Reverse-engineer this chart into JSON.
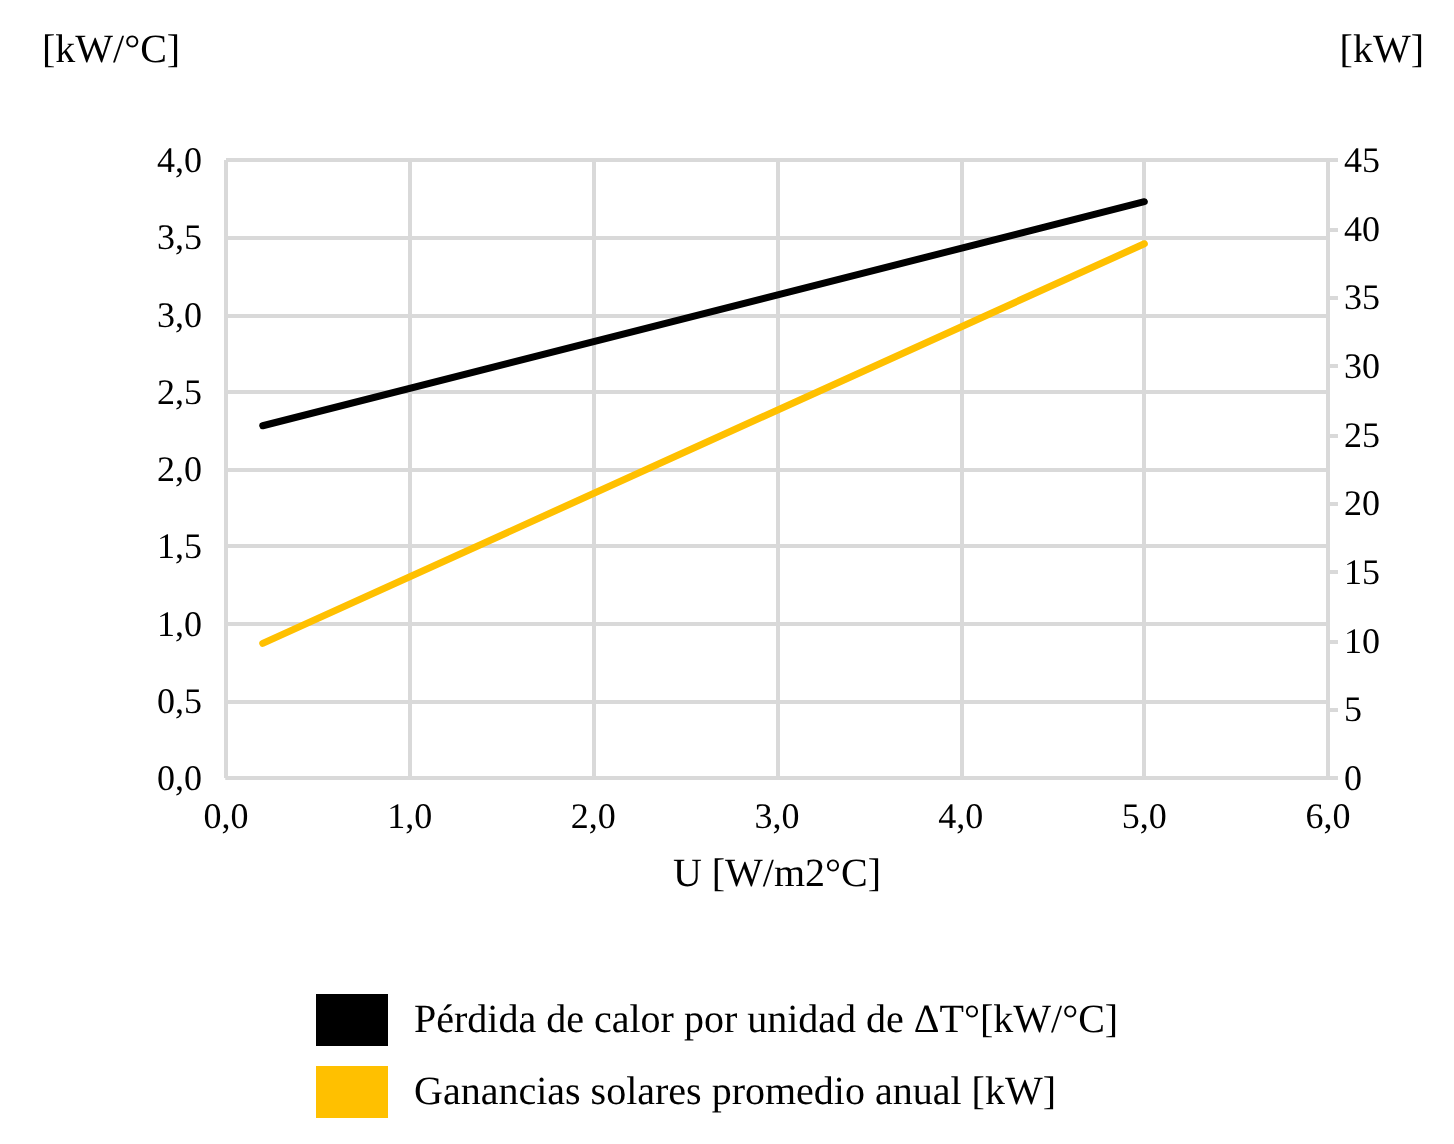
{
  "chart_data": {
    "type": "line",
    "xlabel": "U [W/m2°C]",
    "ylabel": "[kW/°C]",
    "y2label": "[kW]",
    "xlim": [
      0,
      6
    ],
    "xticks": [
      {
        "value": 0,
        "label": "0,0"
      },
      {
        "value": 1,
        "label": "1,0"
      },
      {
        "value": 2,
        "label": "2,0"
      },
      {
        "value": 3,
        "label": "3,0"
      },
      {
        "value": 4,
        "label": "4,0"
      },
      {
        "value": 5,
        "label": "5,0"
      },
      {
        "value": 6,
        "label": "6,0"
      }
    ],
    "ylim": [
      0,
      4
    ],
    "yticks": [
      {
        "value": 0,
        "label": "0,0"
      },
      {
        "value": 0.5,
        "label": "0,5"
      },
      {
        "value": 1,
        "label": "1,0"
      },
      {
        "value": 1.5,
        "label": "1,5"
      },
      {
        "value": 2,
        "label": "2,0"
      },
      {
        "value": 2.5,
        "label": "2,5"
      },
      {
        "value": 3,
        "label": "3,0"
      },
      {
        "value": 3.5,
        "label": "3,5"
      },
      {
        "value": 4,
        "label": "4,0"
      }
    ],
    "y2lim": [
      0,
      45
    ],
    "y2ticks": [
      0,
      5,
      10,
      15,
      20,
      25,
      30,
      35,
      40,
      45
    ],
    "x": [
      0.2,
      5.0
    ],
    "series": [
      {
        "name": "Pérdida de calor por unidad de ΔT°[kW/°C]",
        "color": "#000000",
        "values": [
          2.28,
          3.73
        ]
      },
      {
        "name": "Ganancias solares promedio anual [kW]",
        "color": "#ffc000",
        "values": [
          9.8,
          38.9
        ],
        "axis": "y2"
      }
    ],
    "grid": true,
    "legend": "bottom",
    "marker": "none",
    "line_style": "solid"
  }
}
